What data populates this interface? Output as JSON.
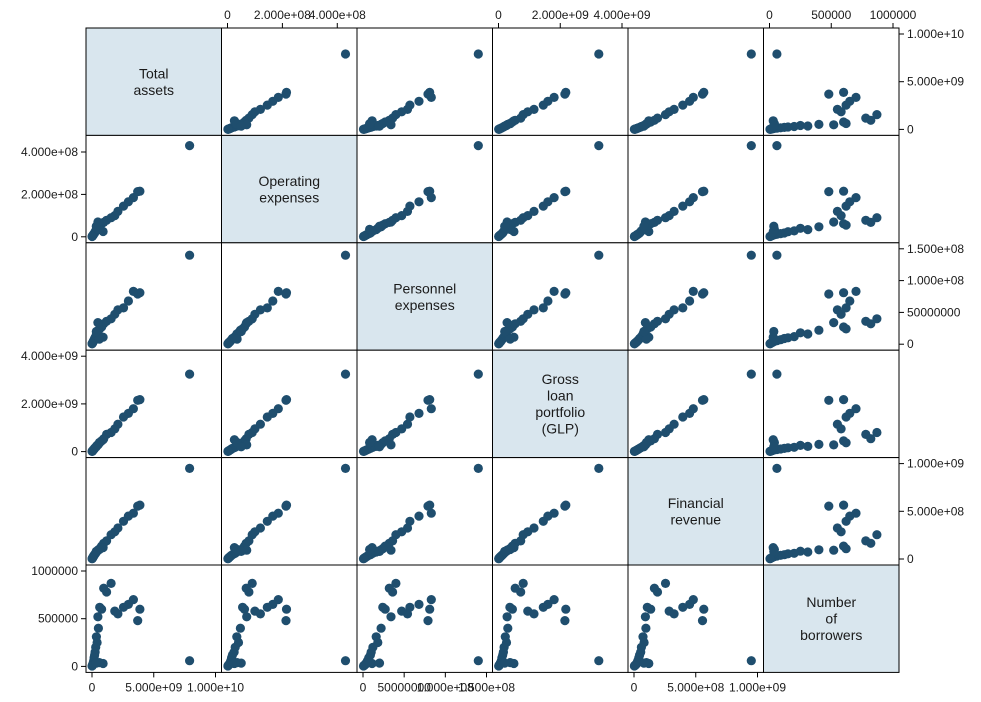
{
  "chart_data": {
    "type": "scatter",
    "subtype": "scatter-matrix",
    "marker_color": "#1f4e6e",
    "diag_fill": "#d9e6ee",
    "axis_color": "#000000",
    "variables": [
      {
        "label": [
          "Total",
          "assets"
        ],
        "range": [
          0,
          10000000000
        ],
        "ticks": [
          0,
          5000000000,
          10000000000
        ],
        "tick_labels": [
          "0",
          "5.000e+09",
          "1.000e+10"
        ]
      },
      {
        "label": [
          "Operating",
          "expenses"
        ],
        "range": [
          0,
          450000000
        ],
        "ticks": [
          0,
          200000000,
          400000000
        ],
        "tick_labels": [
          "0",
          "2.000e+08",
          "4.000e+08"
        ]
      },
      {
        "label": [
          "Personnel",
          "expenses"
        ],
        "range": [
          0,
          150000000
        ],
        "ticks": [
          0,
          50000000,
          100000000,
          150000000
        ],
        "tick_labels": [
          "0",
          "50000000",
          "1.000e+08",
          "1.500e+08"
        ]
      },
      {
        "label": [
          "Gross",
          "loan",
          "portfolio",
          "(GLP)"
        ],
        "range": [
          0,
          4000000000
        ],
        "ticks": [
          0,
          2000000000,
          4000000000
        ],
        "tick_labels": [
          "0",
          "2.000e+09",
          "4.000e+09"
        ]
      },
      {
        "label": [
          "Financial",
          "revenue"
        ],
        "range": [
          0,
          1000000000
        ],
        "ticks": [
          0,
          500000000,
          1000000000
        ],
        "tick_labels": [
          "0",
          "5.000e+08",
          "1.000e+09"
        ]
      },
      {
        "label": [
          "Number",
          "of",
          "borrowers"
        ],
        "range": [
          0,
          1000000
        ],
        "ticks": [
          0,
          500000,
          1000000
        ],
        "tick_labels": [
          "0",
          "500000",
          "1000000"
        ]
      }
    ],
    "axis_annotations": {
      "top": [
        {
          "var": 1,
          "ticks": [
            0,
            200000000,
            400000000
          ],
          "labels": [
            "0",
            "2.000e+08",
            "4.000e+08"
          ]
        },
        {
          "var": 3,
          "ticks": [
            0,
            2000000000,
            4000000000
          ],
          "labels": [
            "0",
            "2.000e+09",
            "4.000e+09"
          ]
        },
        {
          "var": 5,
          "ticks": [
            0,
            500000,
            1000000
          ],
          "labels": [
            "0",
            "500000",
            "1000000"
          ]
        }
      ],
      "bottom": [
        {
          "var": 0,
          "ticks": [
            0,
            5000000000,
            10000000000
          ],
          "labels": [
            "0",
            "5.000e+09",
            "1.000e+10"
          ]
        },
        {
          "var": 2,
          "ticks": [
            0,
            50000000,
            100000000,
            150000000
          ],
          "labels": [
            "0",
            "50000000",
            "1.000e+08",
            "1.500e+08"
          ]
        },
        {
          "var": 4,
          "ticks": [
            0,
            500000000,
            1000000000
          ],
          "labels": [
            "0",
            "5.000e+08",
            "1.000e+09"
          ]
        }
      ],
      "left": [
        {
          "var": 1,
          "ticks": [
            0,
            200000000,
            400000000
          ],
          "labels": [
            "0",
            "2.000e+08",
            "4.000e+08"
          ]
        },
        {
          "var": 3,
          "ticks": [
            0,
            2000000000,
            4000000000
          ],
          "labels": [
            "0",
            "2.000e+09",
            "4.000e+09"
          ]
        },
        {
          "var": 5,
          "ticks": [
            0,
            500000,
            1000000
          ],
          "labels": [
            "0",
            "500000",
            "1000000"
          ]
        }
      ],
      "right": [
        {
          "var": 0,
          "ticks": [
            0,
            5000000000,
            10000000000
          ],
          "labels": [
            "0",
            "5.000e+09",
            "1.000e+10"
          ]
        },
        {
          "var": 2,
          "ticks": [
            0,
            50000000,
            100000000,
            150000000
          ],
          "labels": [
            "0",
            "50000000",
            "1.000e+08",
            "1.500e+08"
          ]
        },
        {
          "var": 4,
          "ticks": [
            0,
            500000000,
            1000000000
          ],
          "labels": [
            "0",
            "5.000e+08",
            "1.000e+09"
          ]
        }
      ]
    },
    "columns": [
      "total_assets",
      "operating_expenses",
      "personnel_expenses",
      "glp",
      "financial_revenue",
      "borrowers"
    ],
    "observations": [
      [
        7900000000,
        430000000,
        140000000,
        3250000000,
        950000000,
        60000
      ],
      [
        3880000000,
        215000000,
        81000000,
        2180000000,
        565000000,
        600000
      ],
      [
        3700000000,
        213000000,
        79000000,
        2150000000,
        555000000,
        480000
      ],
      [
        3350000000,
        185000000,
        83000000,
        1800000000,
        480000000,
        700000
      ],
      [
        2950000000,
        165000000,
        68000000,
        1600000000,
        450000000,
        650000
      ],
      [
        2550000000,
        145000000,
        57000000,
        1450000000,
        395000000,
        620000
      ],
      [
        2100000000,
        120000000,
        54000000,
        1150000000,
        325000000,
        550000
      ],
      [
        1850000000,
        100000000,
        47000000,
        950000000,
        285000000,
        580000
      ],
      [
        1550000000,
        90000000,
        40000000,
        800000000,
        255000000,
        870000
      ],
      [
        1180000000,
        78000000,
        36000000,
        720000000,
        190000000,
        780000
      ],
      [
        950000000,
        68000000,
        32000000,
        540000000,
        165000000,
        820000
      ],
      [
        780000000,
        62000000,
        27000000,
        450000000,
        135000000,
        600000
      ],
      [
        620000000,
        55000000,
        24000000,
        370000000,
        108000000,
        620000
      ],
      [
        520000000,
        47000000,
        22000000,
        300000000,
        96000000,
        400000
      ],
      [
        480000000,
        70000000,
        34000000,
        280000000,
        92000000,
        520000
      ],
      [
        410000000,
        40000000,
        18000000,
        260000000,
        82000000,
        250000
      ],
      [
        360000000,
        34000000,
        16000000,
        220000000,
        73000000,
        310000
      ],
      [
        300000000,
        28000000,
        12000000,
        180000000,
        60000000,
        200000
      ],
      [
        250000000,
        24000000,
        10000000,
        160000000,
        54000000,
        150000
      ],
      [
        210000000,
        18000000,
        9000000,
        135000000,
        45000000,
        120000
      ],
      [
        170000000,
        15000000,
        7000000,
        110000000,
        39000000,
        90000
      ],
      [
        140000000,
        12000000,
        5500000,
        90000000,
        31000000,
        60000
      ],
      [
        110000000,
        10000000,
        4500000,
        70000000,
        26000000,
        40000
      ],
      [
        85000000,
        8000000,
        3500000,
        55000000,
        21000000,
        30000
      ],
      [
        65000000,
        6000000,
        2800000,
        40000000,
        16000000,
        20000
      ],
      [
        45000000,
        4500000,
        2000000,
        30000000,
        12000000,
        15000
      ],
      [
        30000000,
        3000000,
        1400000,
        20000000,
        8000000,
        10000
      ],
      [
        20000000,
        2200000,
        1000000,
        13000000,
        5000000,
        6000
      ],
      [
        12000000,
        1500000,
        600000,
        8000000,
        3000000,
        4000
      ],
      [
        900000000,
        25000000,
        11000000,
        500000000,
        120000000,
        30000
      ],
      [
        600000000,
        35000000,
        8000000,
        380000000,
        100000000,
        40000
      ],
      [
        350000000,
        50000000,
        20000000,
        200000000,
        80000000,
        35000
      ]
    ]
  }
}
